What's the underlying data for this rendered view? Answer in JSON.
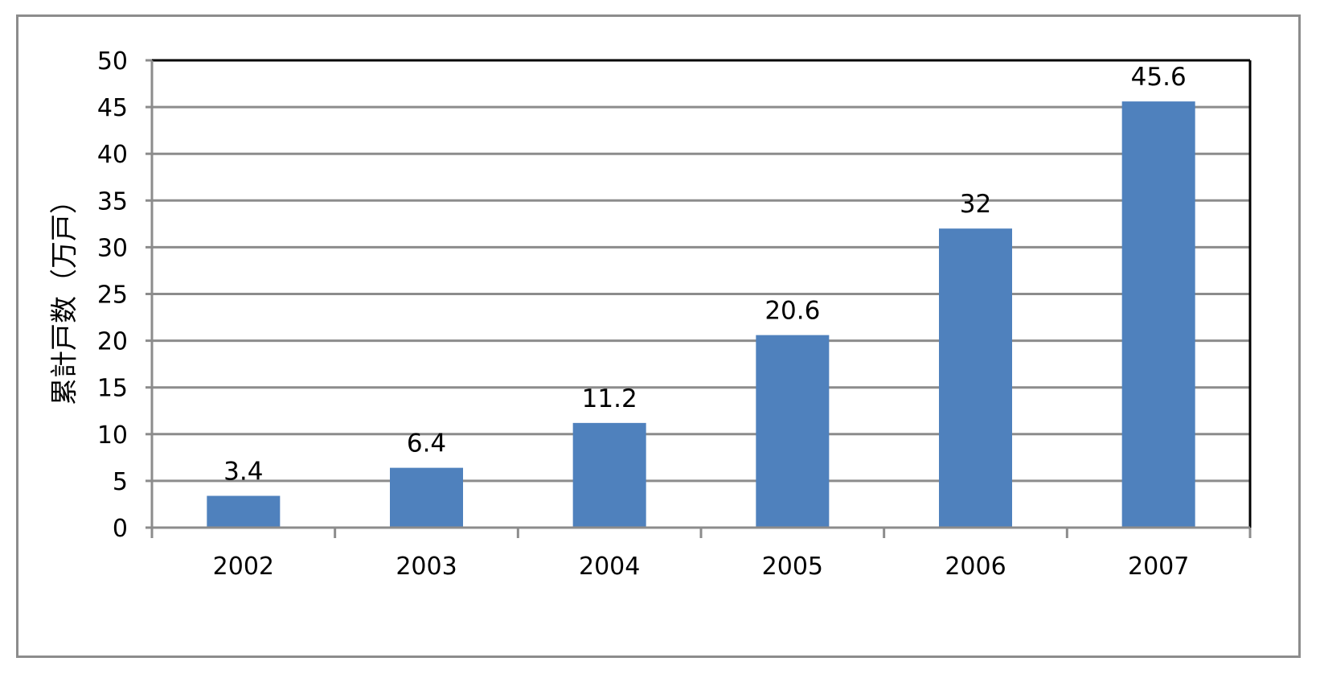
{
  "chart_data": {
    "type": "bar",
    "title": "",
    "xlabel": "",
    "ylabel": "累計戸数（万戸）",
    "categories": [
      "2002",
      "2003",
      "2004",
      "2005",
      "2006",
      "2007"
    ],
    "values": [
      3.4,
      6.4,
      11.2,
      20.6,
      32,
      45.6
    ],
    "data_labels": [
      "3.4",
      "6.4",
      "11.2",
      "20.6",
      "32",
      "45.6"
    ],
    "yticks": [
      0,
      5,
      10,
      15,
      20,
      25,
      30,
      35,
      40,
      45,
      50
    ],
    "ylim": [
      0,
      50
    ],
    "grid": true,
    "legend": "none",
    "bar_color": "#4f81bd"
  }
}
